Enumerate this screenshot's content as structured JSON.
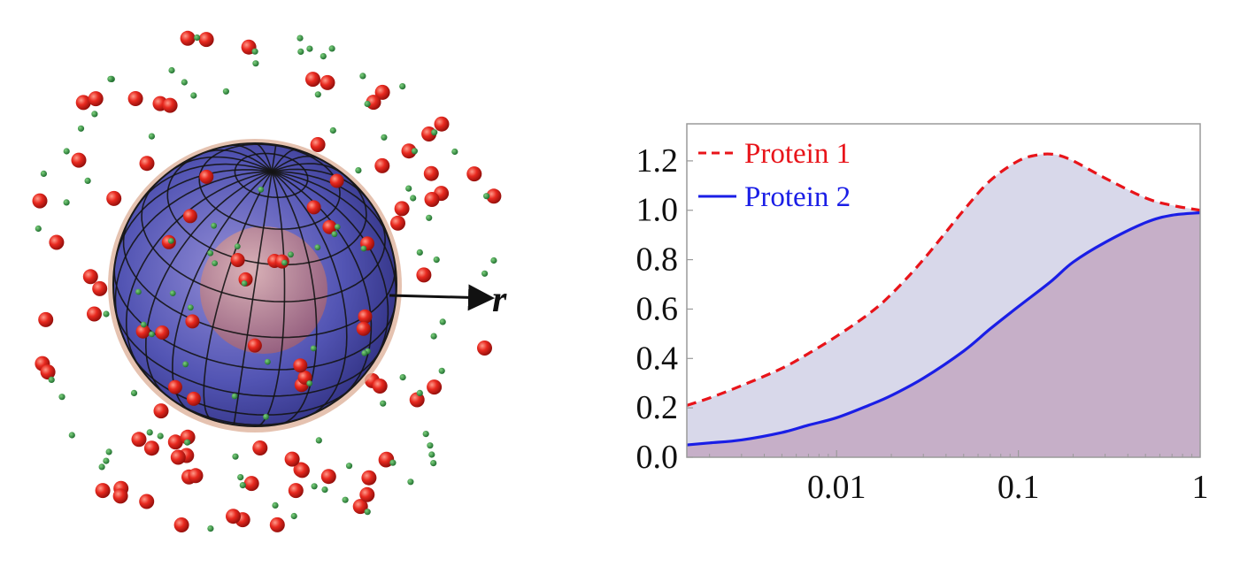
{
  "illustration": {
    "vector_label": "r",
    "colors": {
      "large_particle": "#e32a22",
      "small_particle": "#2a8a3a",
      "sphere_fill": "#4a4fb0",
      "sphere_grid": "#141414",
      "halo": "#d9a48c",
      "core": "#c9878a"
    }
  },
  "chart_data": {
    "type": "area",
    "x_scale": "log",
    "xlim": [
      0.0015,
      1
    ],
    "ylim": [
      0,
      1.35
    ],
    "x_ticks": [
      {
        "value": 0.01,
        "label": "0.01"
      },
      {
        "value": 0.1,
        "label": "0.1"
      },
      {
        "value": 1,
        "label": "1"
      }
    ],
    "y_ticks": [
      {
        "value": 0.0,
        "label": "0.0"
      },
      {
        "value": 0.2,
        "label": "0.2"
      },
      {
        "value": 0.4,
        "label": "0.4"
      },
      {
        "value": 0.6,
        "label": "0.6"
      },
      {
        "value": 0.8,
        "label": "0.8"
      },
      {
        "value": 1.0,
        "label": "1.0"
      },
      {
        "value": 1.2,
        "label": "1.2"
      }
    ],
    "legend_position": "top-left",
    "series": [
      {
        "name": "Protein 1",
        "color": "#e8141a",
        "fill": "#d8d8ea",
        "style": "dashed",
        "x": [
          0.0015,
          0.002,
          0.003,
          0.005,
          0.007,
          0.01,
          0.015,
          0.02,
          0.03,
          0.05,
          0.07,
          0.1,
          0.13,
          0.16,
          0.2,
          0.3,
          0.5,
          0.7,
          1
        ],
        "values": [
          0.21,
          0.24,
          0.29,
          0.36,
          0.42,
          0.49,
          0.58,
          0.66,
          0.8,
          1.0,
          1.12,
          1.2,
          1.225,
          1.225,
          1.2,
          1.13,
          1.05,
          1.02,
          1.0
        ]
      },
      {
        "name": "Protein 2",
        "color": "#1a1ee6",
        "fill": "#c6afc8",
        "style": "solid",
        "x": [
          0.0015,
          0.002,
          0.003,
          0.005,
          0.007,
          0.01,
          0.015,
          0.02,
          0.03,
          0.05,
          0.07,
          0.1,
          0.15,
          0.2,
          0.3,
          0.5,
          0.7,
          1
        ],
        "values": [
          0.05,
          0.058,
          0.07,
          0.1,
          0.13,
          0.16,
          0.21,
          0.25,
          0.32,
          0.43,
          0.52,
          0.61,
          0.71,
          0.79,
          0.87,
          0.95,
          0.98,
          0.99
        ]
      }
    ]
  }
}
